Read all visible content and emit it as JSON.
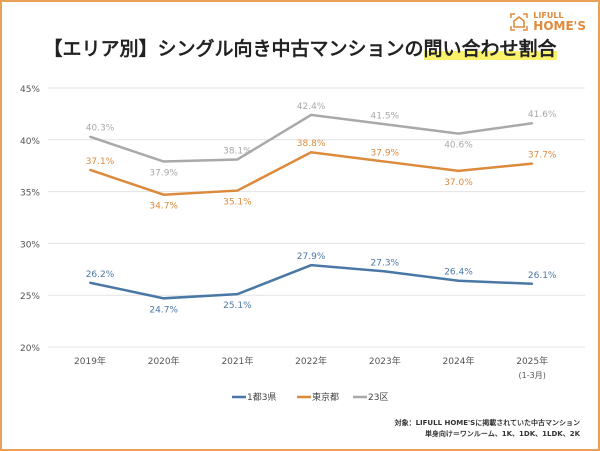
{
  "title_part1": "【エリア別】シングル向き中古マンションの",
  "title_highlight": "問い合わせ割合",
  "logo": {
    "line1": "LIFULL",
    "line2": "HOME'S"
  },
  "note": {
    "line1": "対象：LIFULL HOME'Sに掲載されていた中古マンション",
    "line2": "単身向け＝ワンルーム、1K、1DK、1LDK、2K"
  },
  "colors": {
    "1都3県": "#4a78a6",
    "東京都": "#dc8a3c",
    "23区": "#a9a9a9",
    "accent": "#e9a15a"
  },
  "chart_data": {
    "type": "line",
    "categories": [
      "2019年",
      "2020年",
      "2021年",
      "2022年",
      "2023年",
      "2024年",
      "2025年"
    ],
    "category_sublabels": [
      "",
      "",
      "",
      "",
      "",
      "",
      "(1-3月)"
    ],
    "ylim": [
      20,
      45
    ],
    "yticks": [
      "20%",
      "25%",
      "30%",
      "35%",
      "40%",
      "45%"
    ],
    "grid": true,
    "legend_position": "bottom",
    "series": [
      {
        "name": "1都3県",
        "values": [
          26.2,
          24.7,
          25.1,
          27.9,
          27.3,
          26.4,
          26.1
        ],
        "labels": [
          "26.2%",
          "24.7%",
          "25.1%",
          "27.9%",
          "27.3%",
          "26.4%",
          "26.1%"
        ]
      },
      {
        "name": "東京都",
        "values": [
          37.1,
          34.7,
          35.1,
          38.8,
          37.9,
          37.0,
          37.7
        ],
        "labels": [
          "37.1%",
          "34.7%",
          "35.1%",
          "38.8%",
          "37.9%",
          "37.0%",
          "37.7%"
        ]
      },
      {
        "name": "23区",
        "values": [
          40.3,
          37.9,
          38.1,
          42.4,
          41.5,
          40.6,
          41.6
        ],
        "labels": [
          "40.3%",
          "37.9%",
          "38.1%",
          "42.4%",
          "41.5%",
          "40.6%",
          "41.6%"
        ]
      }
    ]
  }
}
